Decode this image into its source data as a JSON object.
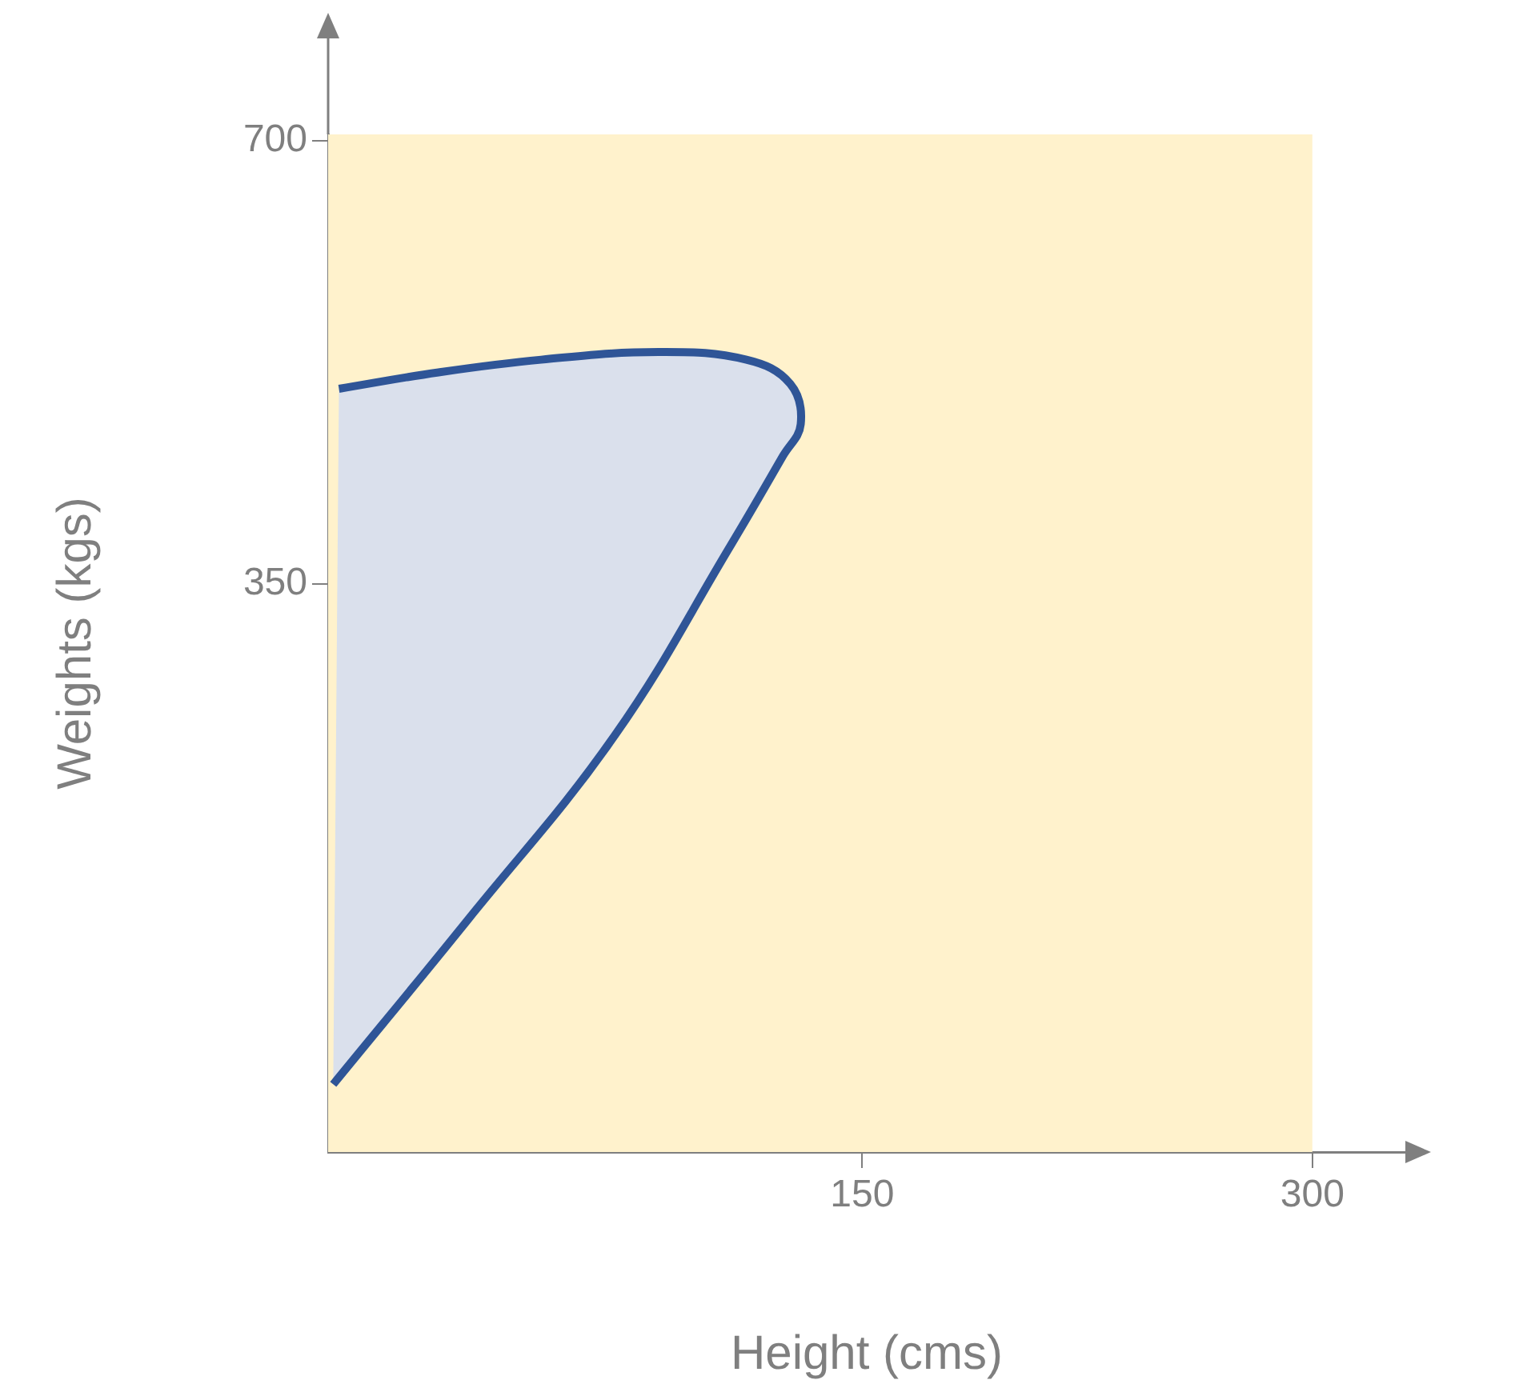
{
  "chart_data": {
    "type": "area",
    "xlabel": "Height (cms)",
    "ylabel": "Weights (kgs)",
    "xlim": [
      -28,
      331
    ],
    "ylim": [
      -99,
      705
    ],
    "xticks": [
      150,
      300
    ],
    "yticks": [
      350,
      700
    ],
    "grid": false,
    "legend": false,
    "bands": [
      {
        "axis": "x",
        "from": -28,
        "to": 300,
        "color": "#fff2cc"
      }
    ],
    "series": [
      {
        "color": "#2f5597",
        "x": [
          -26.3,
          18.6,
          67.5,
          106.5,
          123.6,
          129.5,
          126,
          111.4,
          82.1,
          43,
          8.8,
          -24.4
        ],
        "values": [
          -45.5,
          84.6,
          230,
          381.6,
          451,
          476,
          508,
          527,
          533,
          527,
          517,
          504
        ]
      }
    ]
  }
}
